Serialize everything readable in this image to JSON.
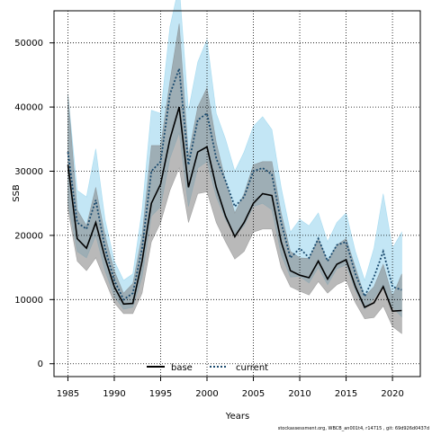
{
  "chart_data": {
    "type": "line",
    "title": "",
    "xlabel": "Years",
    "ylabel": "SSB",
    "xlim": [
      1983.5,
      2023
    ],
    "ylim": [
      -2000,
      55000
    ],
    "grid": true,
    "legend_position": "bottom-center",
    "x_ticks": [
      1985,
      1990,
      1995,
      2000,
      2005,
      2010,
      2015,
      2020
    ],
    "y_ticks": [
      0,
      10000,
      20000,
      30000,
      40000,
      50000
    ],
    "footer_note": "stockassessment.org, WBCB_an001t4, r14715 , git: 69d926d0437d",
    "x": [
      1985,
      1986,
      1987,
      1988,
      1989,
      1990,
      1991,
      1992,
      1993,
      1994,
      1995,
      1996,
      1997,
      1998,
      1999,
      2000,
      2001,
      2002,
      2003,
      2004,
      2005,
      2006,
      2007,
      2008,
      2009,
      2010,
      2011,
      2012,
      2013,
      2014,
      2015,
      2016,
      2017,
      2018,
      2019,
      2020,
      2021
    ],
    "series": [
      {
        "name": "base",
        "color": "#000000",
        "band_color": "#808080",
        "line_style": "solid",
        "values": [
          31000,
          19500,
          18000,
          22000,
          16500,
          12000,
          9300,
          9400,
          16000,
          25000,
          28000,
          35000,
          40000,
          27500,
          33000,
          33800,
          27500,
          23000,
          19800,
          22000,
          25000,
          26500,
          26200,
          19000,
          14500,
          13800,
          13400,
          16000,
          13200,
          15500,
          16200,
          12000,
          8800,
          9500,
          12000,
          8200,
          8300
        ],
        "lower": [
          24000,
          16000,
          14500,
          16500,
          13000,
          9500,
          7800,
          7800,
          11000,
          19000,
          22000,
          27000,
          30500,
          22000,
          26500,
          26800,
          22000,
          19000,
          16300,
          17500,
          20500,
          21000,
          21000,
          15000,
          12000,
          11300,
          10700,
          12800,
          11000,
          12300,
          13000,
          9500,
          7000,
          7200,
          9000,
          5800,
          4700
        ],
        "upper": [
          42000,
          24000,
          21500,
          27500,
          20000,
          14500,
          11000,
          12500,
          20000,
          34000,
          34000,
          44000,
          53000,
          32500,
          40000,
          43000,
          34500,
          28500,
          23500,
          26500,
          31000,
          31500,
          31500,
          23500,
          17500,
          16500,
          16400,
          19500,
          16000,
          18500,
          19500,
          15000,
          10500,
          12000,
          15500,
          10500,
          14000
        ]
      },
      {
        "name": "current",
        "color": "#1a4a6e",
        "band_color": "#87ceeb",
        "line_style": "dotted",
        "values": [
          33000,
          22000,
          21000,
          25500,
          18000,
          13000,
          10000,
          11000,
          18000,
          30000,
          31500,
          42000,
          46000,
          31000,
          38000,
          39000,
          32000,
          28500,
          24500,
          26000,
          30000,
          30500,
          29500,
          22000,
          16500,
          18000,
          16500,
          19500,
          16000,
          18500,
          19000,
          14000,
          10500,
          13500,
          17500,
          12000,
          11500
        ],
        "lower": [
          25000,
          17500,
          16500,
          20000,
          14500,
          10500,
          8500,
          8800,
          13500,
          23000,
          24500,
          32000,
          36000,
          24500,
          30500,
          31500,
          26000,
          22500,
          20000,
          21500,
          24500,
          25000,
          24000,
          17000,
          13500,
          13600,
          12600,
          15000,
          12300,
          14800,
          15400,
          11400,
          8500,
          10200,
          12300,
          8800,
          7300
        ],
        "upper": [
          42000,
          27000,
          26000,
          33500,
          22500,
          16000,
          13000,
          14000,
          24000,
          39500,
          39000,
          52500,
          59000,
          39500,
          47000,
          50500,
          39000,
          35000,
          30000,
          33000,
          37000,
          38500,
          36500,
          27500,
          20500,
          22500,
          21500,
          23500,
          19000,
          22000,
          23500,
          17500,
          13000,
          18000,
          26500,
          18000,
          20500
        ]
      }
    ]
  }
}
